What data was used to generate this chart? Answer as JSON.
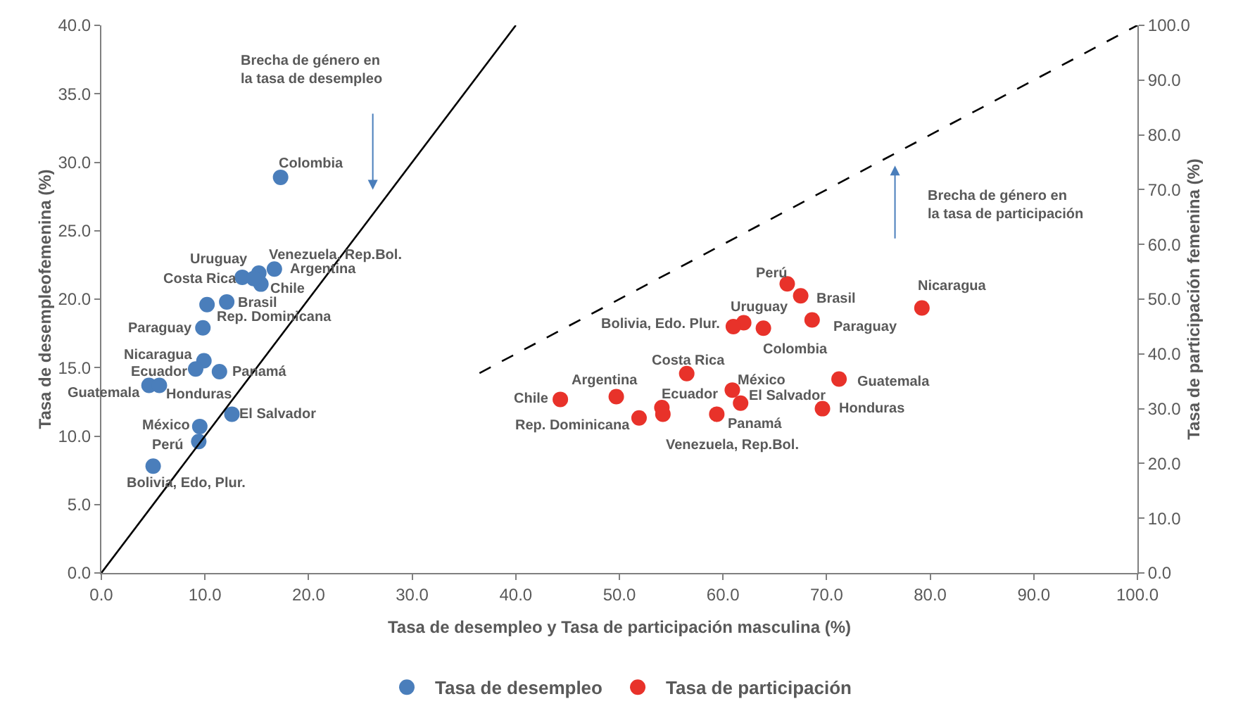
{
  "chart_data": {
    "type": "scatter",
    "xlabel": "Tasa de desempleo y Tasa de participación masculina (%)",
    "ylabel": "Tasa de desempleofemenina (%)",
    "y2label": "Tasa de participación femenina (%)",
    "xlim": [
      0,
      100
    ],
    "xticks": [
      {
        "value": 0,
        "label": "0.0"
      },
      {
        "value": 10,
        "label": "10.0"
      },
      {
        "value": 20,
        "label": "20.0"
      },
      {
        "value": 30,
        "label": "30.0"
      },
      {
        "value": 40,
        "label": "40.0"
      },
      {
        "value": 50,
        "label": "50.0"
      },
      {
        "value": 60,
        "label": "60.0"
      },
      {
        "value": 70,
        "label": "70.0"
      },
      {
        "value": 80,
        "label": "80.0"
      },
      {
        "value": 90,
        "label": "90.0"
      },
      {
        "value": 100,
        "label": "100.0"
      }
    ],
    "ylim": [
      0,
      40
    ],
    "yticks": [
      {
        "value": 0,
        "label": "0.0"
      },
      {
        "value": 5,
        "label": "5.0"
      },
      {
        "value": 10,
        "label": "10.0"
      },
      {
        "value": 15,
        "label": "15.0"
      },
      {
        "value": 20,
        "label": "20.0"
      },
      {
        "value": 25,
        "label": "25.0"
      },
      {
        "value": 30,
        "label": "30.0"
      },
      {
        "value": 35,
        "label": "35.0"
      },
      {
        "value": 40,
        "label": "40.0"
      }
    ],
    "y2lim": [
      0,
      100
    ],
    "y2ticks": [
      {
        "value": 0,
        "label": "0.0"
      },
      {
        "value": 10,
        "label": "10.0"
      },
      {
        "value": 20,
        "label": "20.0"
      },
      {
        "value": 30,
        "label": "30.0"
      },
      {
        "value": 40,
        "label": "40.0"
      },
      {
        "value": 50,
        "label": "50.0"
      },
      {
        "value": 60,
        "label": "60.0"
      },
      {
        "value": 70,
        "label": "70.0"
      },
      {
        "value": 80,
        "label": "80.0"
      },
      {
        "value": 90,
        "label": "90.0"
      },
      {
        "value": 100,
        "label": "100.0"
      }
    ],
    "grid": false,
    "legend": "bottom",
    "annotations": [
      "Brecha de género en la tasa de desempleo",
      "Brecha de género en la tasa de participación"
    ],
    "series": [
      {
        "name": "Tasa de desempleo",
        "marker": "circle",
        "color": "#4a7ebb",
        "x": [
          17.3,
          16.7,
          15.2,
          13.6,
          15.4,
          14.7,
          12.1,
          10.2,
          9.8,
          9.9,
          9.1,
          11.4,
          4.6,
          5.6,
          12.6,
          9.5,
          9.4,
          5.0
        ],
        "values": [
          28.9,
          22.2,
          21.9,
          21.6,
          21.1,
          21.5,
          19.8,
          19.6,
          17.9,
          15.5,
          14.9,
          14.7,
          13.7,
          13.7,
          11.6,
          10.7,
          9.6,
          7.8
        ],
        "value_labels": [
          "Colombia",
          "Argentina",
          "Venezuela, Rep.Bol.",
          "Uruguay",
          "Chile",
          "Costa Rica",
          "Brasil",
          "Rep. Dominicana",
          "Paraguay",
          "Nicaragua",
          "Ecuador",
          "Panamá",
          "Guatemala",
          "Honduras",
          "El Salvador",
          "México",
          "Perú",
          "Bolivia, Edo, Plur."
        ]
      },
      {
        "name": "Tasa de participación",
        "marker": "circle",
        "axis": "y2",
        "color": "#e8322a",
        "x": [
          66.2,
          67.5,
          79.2,
          68.6,
          62.0,
          61.0,
          63.9,
          56.5,
          71.2,
          60.9,
          44.3,
          49.7,
          61.7,
          54.1,
          54.2,
          69.6,
          59.4,
          51.9
        ],
        "values": [
          52.8,
          50.6,
          48.4,
          46.2,
          45.7,
          45.0,
          44.7,
          36.4,
          35.4,
          33.4,
          31.7,
          32.2,
          31.0,
          30.2,
          29.0,
          30.0,
          29.0,
          28.3
        ],
        "value_labels": [
          "Perú",
          "Brasil",
          "Nicaragua",
          "Paraguay",
          "Uruguay",
          "Bolivia, Edo. Plur.",
          "Colombia",
          "Costa Rica",
          "Guatemala",
          "México",
          "Chile",
          "Argentina",
          "El Salvador",
          "Ecuador",
          "Venezuela, Rep.Bol.",
          "Honduras",
          "Panamá",
          "Rep. Dominicana"
        ]
      },
      {
        "type": "line",
        "color": "#000000",
        "line_style": "solid",
        "x": [
          0,
          40
        ],
        "values": [
          0,
          40
        ]
      },
      {
        "type": "line",
        "axis": "y2",
        "color": "#000000",
        "line_style": "dashed",
        "x": [
          36.5,
          100
        ],
        "values": [
          36.5,
          100
        ]
      }
    ]
  }
}
